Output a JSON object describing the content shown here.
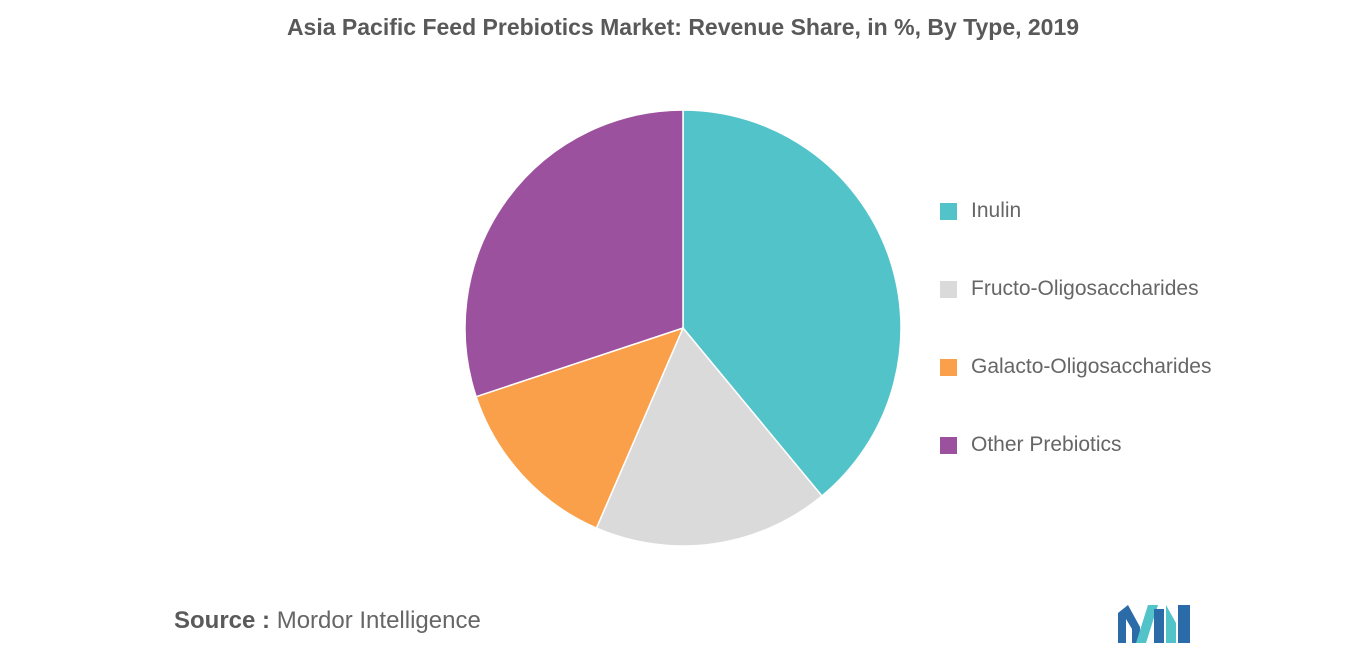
{
  "chart_data": {
    "type": "pie",
    "title": "Asia Pacific Feed Prebiotics Market: Revenue Share, in %, By Type, 2019",
    "slices": [
      {
        "name": "Inulin",
        "value": 39.0,
        "color": "#52c3c9"
      },
      {
        "name": "Fructo-Oligosaccharides",
        "value": 17.5,
        "color": "#dadada"
      },
      {
        "name": "Galacto-Oligosaccharides",
        "value": 13.4,
        "color": "#fba04a"
      },
      {
        "name": "Other Prebiotics",
        "value": 30.1,
        "color": "#9c519e"
      }
    ],
    "legend_position": "right"
  },
  "source": {
    "label": "Source :",
    "text": "Mordor Intelligence"
  },
  "logo": {
    "icon": "mordor-intelligence-logo-icon",
    "colors": [
      "#2a6ba8",
      "#52c3c9"
    ]
  }
}
